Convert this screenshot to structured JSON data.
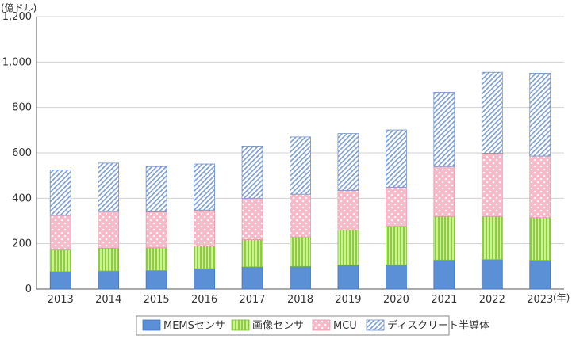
{
  "chart_data": {
    "type": "bar",
    "stacked": true,
    "title": "",
    "xlabel": "",
    "ylabel": "",
    "y_unit_label": "(億ドル)",
    "x_unit_label": "(年)",
    "ylim": [
      0,
      1200
    ],
    "yticks": [
      0,
      200,
      400,
      600,
      800,
      1000,
      1200
    ],
    "ytick_labels": [
      "0",
      "200",
      "400",
      "600",
      "800",
      "1,000",
      "1,200"
    ],
    "grid": true,
    "legend_position": "bottom",
    "categories": [
      "2013",
      "2014",
      "2015",
      "2016",
      "2017",
      "2018",
      "2019",
      "2020",
      "2021",
      "2022",
      "2023"
    ],
    "series": [
      {
        "name": "MEMSセンサ",
        "color": "#5b8fd6",
        "pattern": "solid",
        "values": [
          77,
          80,
          82,
          90,
          98,
          100,
          106,
          107,
          128,
          130,
          127
        ]
      },
      {
        "name": "画像センサ",
        "color": "#b4e36b",
        "pattern": "vertical-stripes",
        "values": [
          95,
          100,
          100,
          100,
          120,
          130,
          155,
          170,
          192,
          190,
          188
        ]
      },
      {
        "name": "MCU",
        "color": "#f7b8c8",
        "pattern": "dots",
        "values": [
          153,
          162,
          158,
          158,
          182,
          188,
          174,
          172,
          220,
          278,
          271
        ]
      },
      {
        "name": "ディスクリート半導体",
        "color": "#9cb6e0",
        "pattern": "diagonal-hatch",
        "values": [
          200,
          213,
          200,
          203,
          230,
          252,
          250,
          252,
          327,
          357,
          365
        ]
      }
    ]
  }
}
